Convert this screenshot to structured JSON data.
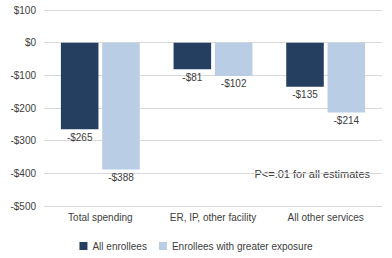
{
  "chart_data": {
    "type": "bar",
    "categories": [
      "Total spending",
      "ER, IP, other facility",
      "All other services"
    ],
    "series": [
      {
        "name": "All enrollees",
        "color": "#243f60",
        "values": [
          -265,
          -81,
          -135
        ],
        "value_labels": [
          "-$265",
          "-$81",
          "-$135"
        ]
      },
      {
        "name": "Enrollees with greater exposure",
        "color": "#b9cde5",
        "values": [
          -388,
          -102,
          -214
        ],
        "value_labels": [
          "-$388",
          "-$102",
          "-$214"
        ]
      }
    ],
    "annotation": "P<=.01 for all estimates",
    "ylim": [
      -500,
      100
    ],
    "yticks": [
      {
        "value": -500,
        "label": "-$500"
      },
      {
        "value": -400,
        "label": "-$400"
      },
      {
        "value": -300,
        "label": "-$300"
      },
      {
        "value": -200,
        "label": "-$200"
      },
      {
        "value": -100,
        "label": "-$100"
      },
      {
        "value": 0,
        "label": "$0"
      },
      {
        "value": 100,
        "label": "$100"
      }
    ],
    "grid": true,
    "legend": "bottom",
    "data_labels": true
  }
}
